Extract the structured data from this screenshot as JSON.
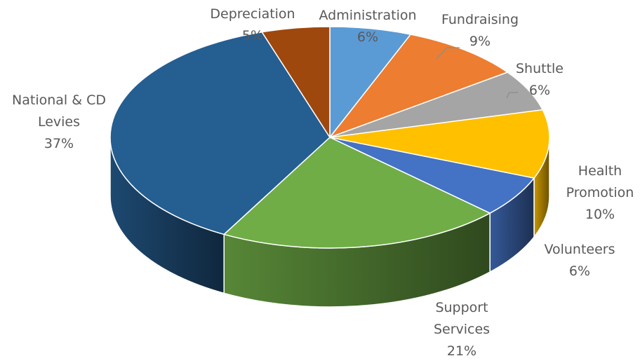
{
  "chart_data": {
    "type": "pie",
    "title": "",
    "style": "3d",
    "slices": [
      {
        "name": "Administration",
        "label_lines": [
          "Administration"
        ],
        "value": 6,
        "value_label": "6%",
        "color": "#5b9bd5"
      },
      {
        "name": "Fundraising",
        "label_lines": [
          "Fundraising"
        ],
        "value": 9,
        "value_label": "9%",
        "color": "#ed7d31"
      },
      {
        "name": "Shuttle",
        "label_lines": [
          "Shuttle"
        ],
        "value": 6,
        "value_label": "6%",
        "color": "#a5a5a5"
      },
      {
        "name": "Health Promotion",
        "label_lines": [
          "Health",
          "Promotion"
        ],
        "value": 10,
        "value_label": "10%",
        "color": "#ffc000"
      },
      {
        "name": "Volunteers",
        "label_lines": [
          "Volunteers"
        ],
        "value": 6,
        "value_label": "6%",
        "color": "#4472c4"
      },
      {
        "name": "Support Services",
        "label_lines": [
          "Support",
          "Services"
        ],
        "value": 21,
        "value_label": "21%",
        "color": "#70ad47"
      },
      {
        "name": "National & CD Levies",
        "label_lines": [
          "National & CD",
          "Levies"
        ],
        "value": 37,
        "value_label": "37%",
        "color": "#255e91"
      },
      {
        "name": "Depreciation",
        "label_lines": [
          "Depreciation"
        ],
        "value": 5,
        "value_label": "5%",
        "color": "#9e480e"
      }
    ]
  }
}
